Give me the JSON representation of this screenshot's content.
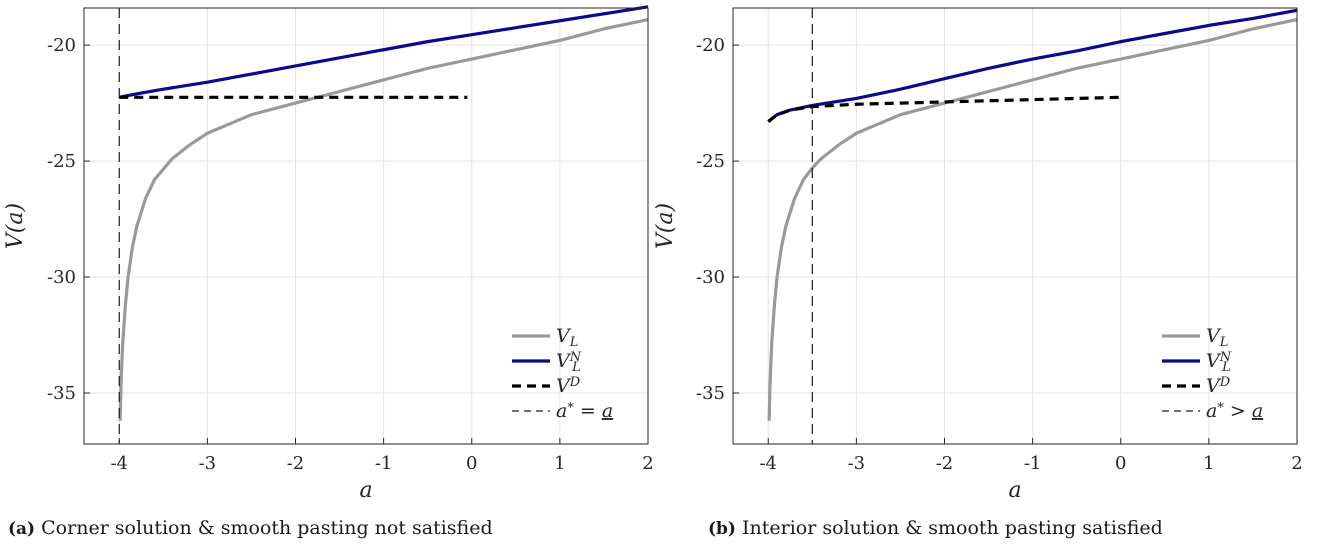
{
  "colors": {
    "v_l": "#999999",
    "v_l_n": "#0a0a8c",
    "v_d": "#000000",
    "grid": "#e3e3e3",
    "axes": "#262626"
  },
  "captions": [
    {
      "tag": "(a)",
      "text": " Corner solution & smooth pasting not satisfied"
    },
    {
      "tag": "(b)",
      "text": " Interior solution & smooth pasting satisfied"
    }
  ],
  "chart_data": [
    {
      "type": "line",
      "xlabel": "a",
      "ylabel": "V(a)",
      "xlim": [
        -4.4,
        2
      ],
      "ylim": [
        -37.2,
        -18.4
      ],
      "xticks": [
        -4,
        -3,
        -2,
        -1,
        0,
        1,
        2
      ],
      "yticks": [
        -35,
        -30,
        -25,
        -20
      ],
      "xticklabels": [
        "-4",
        "-3",
        "-2",
        "-1",
        "0",
        "1",
        "2"
      ],
      "yticklabels": [
        "-35",
        "-30",
        "-25",
        "-20"
      ],
      "grid": true,
      "legend_position": "bottom-right",
      "vline_x": -4,
      "series": [
        {
          "name": "V_L",
          "style": "gray-solid",
          "points": [
            [
              -3.99,
              -36.2
            ],
            [
              -3.98,
              -34.6
            ],
            [
              -3.96,
              -32.8
            ],
            [
              -3.93,
              -31.2
            ],
            [
              -3.9,
              -30.0
            ],
            [
              -3.85,
              -28.7
            ],
            [
              -3.8,
              -27.8
            ],
            [
              -3.7,
              -26.6
            ],
            [
              -3.6,
              -25.8
            ],
            [
              -3.4,
              -24.9
            ],
            [
              -3.2,
              -24.3
            ],
            [
              -3.0,
              -23.8
            ],
            [
              -2.5,
              -23.0
            ],
            [
              -2.0,
              -22.5
            ],
            [
              -1.5,
              -22.0
            ],
            [
              -1.0,
              -21.5
            ],
            [
              -0.5,
              -21.0
            ],
            [
              0.0,
              -20.6
            ],
            [
              0.5,
              -20.2
            ],
            [
              1.0,
              -19.8
            ],
            [
              1.5,
              -19.3
            ],
            [
              2.0,
              -18.9
            ]
          ]
        },
        {
          "name": "V_L^N",
          "style": "blue-solid",
          "points": [
            [
              -4.0,
              -22.25
            ],
            [
              -3.8,
              -22.1
            ],
            [
              -3.5,
              -21.9
            ],
            [
              -3.0,
              -21.6
            ],
            [
              -2.5,
              -21.25
            ],
            [
              -2.0,
              -20.9
            ],
            [
              -1.5,
              -20.55
            ],
            [
              -1.0,
              -20.2
            ],
            [
              -0.5,
              -19.85
            ],
            [
              0.0,
              -19.55
            ],
            [
              0.5,
              -19.25
            ],
            [
              1.0,
              -18.95
            ],
            [
              1.5,
              -18.65
            ],
            [
              2.0,
              -18.35
            ]
          ]
        },
        {
          "name": "V^D",
          "style": "black-dashed",
          "points": [
            [
              -4.0,
              -22.25
            ],
            [
              -0.05,
              -22.25
            ]
          ]
        }
      ],
      "legend": [
        {
          "label_main": "V",
          "label_sub": "L",
          "label_sup": ""
        },
        {
          "label_main": "V",
          "label_sub": "L",
          "label_sup": "N"
        },
        {
          "label_main": "V",
          "label_sub": "",
          "label_sup": "D"
        },
        {
          "label_text": "a* = a"
        }
      ]
    },
    {
      "type": "line",
      "xlabel": "a",
      "ylabel": "V(a)",
      "xlim": [
        -4.4,
        2
      ],
      "ylim": [
        -37.2,
        -18.4
      ],
      "xticks": [
        -4,
        -3,
        -2,
        -1,
        0,
        1,
        2
      ],
      "yticks": [
        -35,
        -30,
        -25,
        -20
      ],
      "xticklabels": [
        "-4",
        "-3",
        "-2",
        "-1",
        "0",
        "1",
        "2"
      ],
      "yticklabels": [
        "-35",
        "-30",
        "-25",
        "-20"
      ],
      "grid": true,
      "legend_position": "bottom-right",
      "vline_x": -3.5,
      "series": [
        {
          "name": "V_L",
          "style": "gray-solid",
          "points": [
            [
              -3.99,
              -36.2
            ],
            [
              -3.98,
              -34.6
            ],
            [
              -3.96,
              -32.8
            ],
            [
              -3.93,
              -31.2
            ],
            [
              -3.9,
              -30.0
            ],
            [
              -3.85,
              -28.7
            ],
            [
              -3.8,
              -27.8
            ],
            [
              -3.7,
              -26.6
            ],
            [
              -3.6,
              -25.8
            ],
            [
              -3.5,
              -25.3
            ],
            [
              -3.4,
              -24.9
            ],
            [
              -3.2,
              -24.3
            ],
            [
              -3.0,
              -23.8
            ],
            [
              -2.5,
              -23.0
            ],
            [
              -2.0,
              -22.5
            ],
            [
              -1.5,
              -22.0
            ],
            [
              -1.0,
              -21.5
            ],
            [
              -0.5,
              -21.0
            ],
            [
              0.0,
              -20.6
            ],
            [
              0.5,
              -20.2
            ],
            [
              1.0,
              -19.8
            ],
            [
              1.5,
              -19.3
            ],
            [
              2.0,
              -18.9
            ]
          ]
        },
        {
          "name": "V_L^N",
          "style": "blue-solid",
          "points": [
            [
              -4.0,
              -23.3
            ],
            [
              -3.9,
              -23.0
            ],
            [
              -3.75,
              -22.8
            ],
            [
              -3.5,
              -22.6
            ],
            [
              -3.0,
              -22.3
            ],
            [
              -2.5,
              -21.9
            ],
            [
              -2.0,
              -21.45
            ],
            [
              -1.5,
              -21.0
            ],
            [
              -1.0,
              -20.6
            ],
            [
              -0.5,
              -20.25
            ],
            [
              0.0,
              -19.85
            ],
            [
              0.5,
              -19.5
            ],
            [
              1.0,
              -19.15
            ],
            [
              1.5,
              -18.85
            ],
            [
              2.0,
              -18.5
            ]
          ]
        },
        {
          "name": "V^D",
          "style": "black-dashed",
          "points": [
            [
              -4.0,
              -23.3
            ],
            [
              -3.9,
              -23.0
            ],
            [
              -3.75,
              -22.8
            ],
            [
              -3.5,
              -22.65
            ],
            [
              -3.0,
              -22.55
            ],
            [
              -2.5,
              -22.5
            ],
            [
              -2.0,
              -22.45
            ],
            [
              -1.5,
              -22.4
            ],
            [
              -1.0,
              -22.35
            ],
            [
              -0.5,
              -22.3
            ],
            [
              0.0,
              -22.25
            ]
          ]
        }
      ],
      "legend": [
        {
          "label_main": "V",
          "label_sub": "L",
          "label_sup": ""
        },
        {
          "label_main": "V",
          "label_sub": "L",
          "label_sup": "N"
        },
        {
          "label_main": "V",
          "label_sub": "",
          "label_sup": "D"
        },
        {
          "label_text": "a* > a"
        }
      ]
    }
  ]
}
